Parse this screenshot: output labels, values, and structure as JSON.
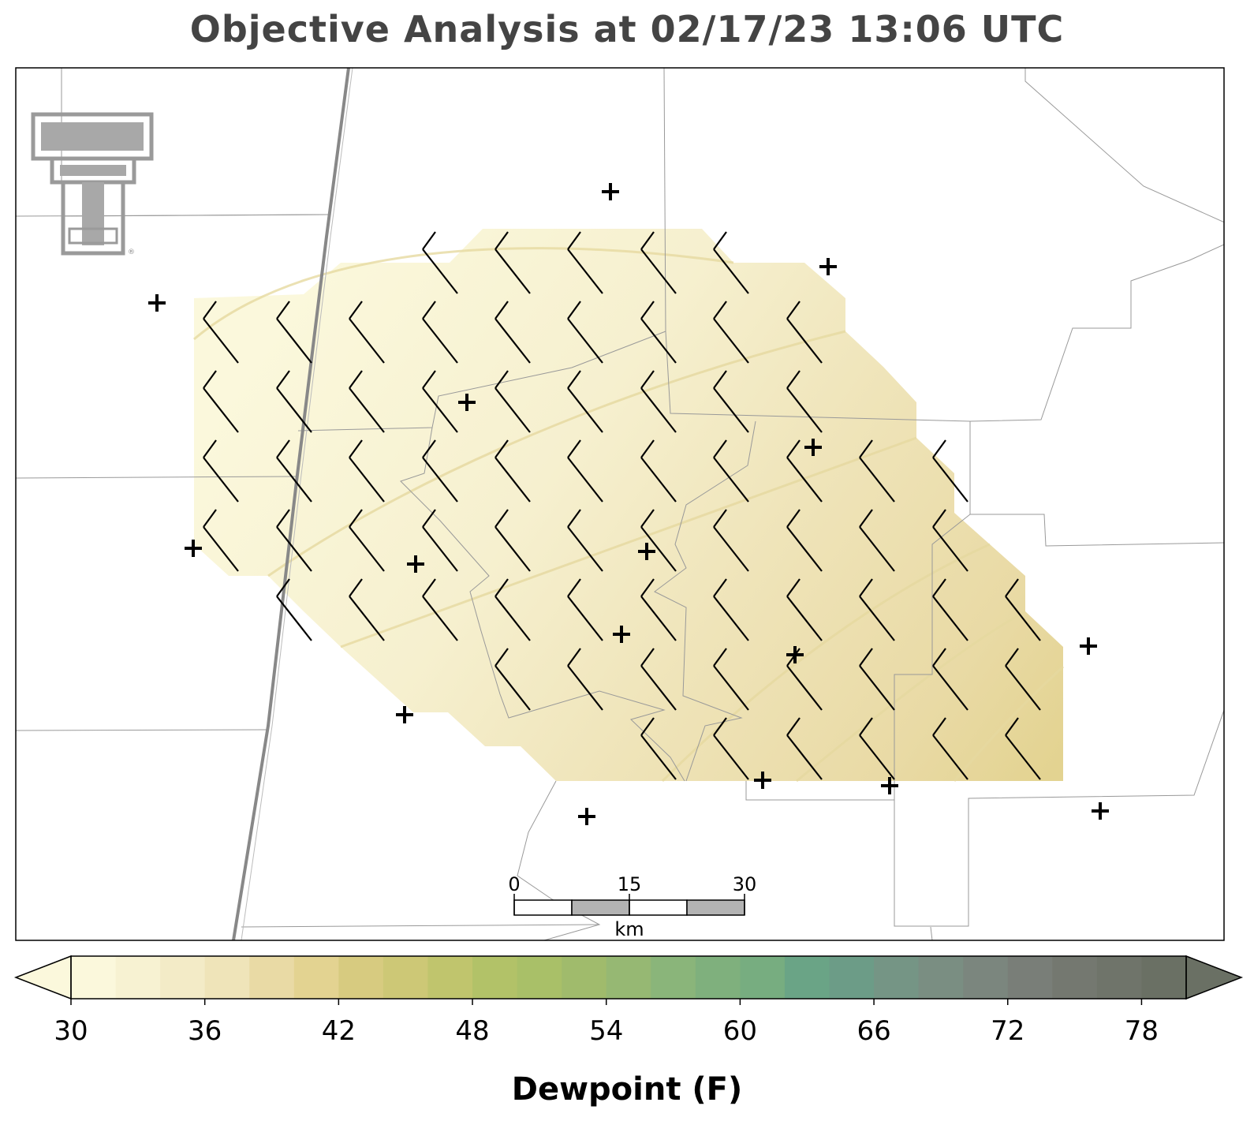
{
  "title": "Objective Analysis at 02/17/23 13:06 UTC",
  "logo": {
    "name": "texas-tech-double-t-logo",
    "mark": "®"
  },
  "scale_bar": {
    "labels": [
      "0",
      "15",
      "30"
    ],
    "unit": "km"
  },
  "colorbar": {
    "label": "Dewpoint (F)",
    "min": 30,
    "max": 80,
    "step": 2,
    "tick_labels": [
      "30",
      "36",
      "42",
      "48",
      "54",
      "60",
      "66",
      "72",
      "78"
    ],
    "tick_values": [
      30,
      36,
      42,
      48,
      54,
      60,
      66,
      72,
      78
    ],
    "colors": [
      "#fbf8dc",
      "#f7f2d2",
      "#f3ebc7",
      "#efe4b9",
      "#e9daa5",
      "#e3d391",
      "#d7cb80",
      "#cdc876",
      "#c0c56d",
      "#b2c268",
      "#a9c068",
      "#a0bb6c",
      "#96b873",
      "#8ab57a",
      "#7fb07d",
      "#77ad80",
      "#6aa486",
      "#6c9c87",
      "#759585",
      "#7a8e82",
      "#7b867e",
      "#797e78",
      "#747870",
      "#6f746a",
      "#6a7064"
    ],
    "extend": "both"
  },
  "chart_data": {
    "type": "map",
    "variable": "Dewpoint (F)",
    "timestamp_utc": "02/17/23 13:06",
    "station_count": 17,
    "wind_barb_field": "wind barbs over analysis grid",
    "analysis_shading_range_F": [
      30,
      44
    ]
  }
}
